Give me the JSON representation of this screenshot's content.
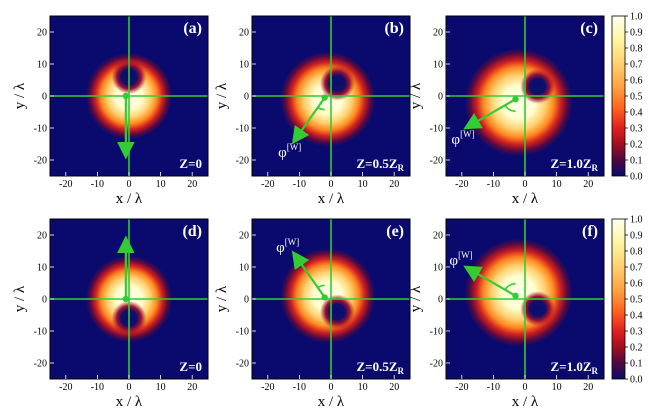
{
  "figure": {
    "panels": [
      {
        "id": "a",
        "label": "(a)",
        "z_label": "Z=0",
        "z_sub": "",
        "phi": "",
        "spot_dx": 0,
        "spot_dy": 0,
        "arrow": "down",
        "dark_hole": [
          0,
          6
        ],
        "scale": 1.0
      },
      {
        "id": "b",
        "label": "(b)",
        "z_label": "Z=0.5Z",
        "z_sub": "R",
        "phi": "φ",
        "spot_dx": -1,
        "spot_dy": -1,
        "arrow": "down-left-short",
        "dark_hole": [
          2,
          4
        ],
        "scale": 1.1
      },
      {
        "id": "c",
        "label": "(c)",
        "z_label": "Z=1.0Z",
        "z_sub": "R",
        "phi": "φ",
        "spot_dx": -2,
        "spot_dy": -2,
        "arrow": "down-left-long",
        "dark_hole": [
          4,
          3
        ],
        "scale": 1.25
      },
      {
        "id": "d",
        "label": "(d)",
        "z_label": "Z=0",
        "z_sub": "",
        "phi": "",
        "spot_dx": 0,
        "spot_dy": 0,
        "arrow": "up",
        "dark_hole": [
          0,
          -6
        ],
        "scale": 1.0
      },
      {
        "id": "e",
        "label": "(e)",
        "z_label": "Z=0.5Z",
        "z_sub": "R",
        "phi": "φ",
        "spot_dx": -1,
        "spot_dy": 1,
        "arrow": "up-left-short",
        "dark_hole": [
          2,
          -4
        ],
        "scale": 1.1
      },
      {
        "id": "f",
        "label": "(f)",
        "z_label": "Z=1.0Z",
        "z_sub": "R",
        "phi": "φ",
        "spot_dx": -2,
        "spot_dy": 2,
        "arrow": "up-left-long",
        "dark_hole": [
          4,
          -3
        ],
        "scale": 1.25
      }
    ],
    "phi_superscript": "[W]",
    "x_axis_label": "x / λ",
    "y_axis_label": "y / λ",
    "x_ticks": [
      "-20",
      "-10",
      "0",
      "10",
      "20"
    ],
    "y_ticks": [
      "20",
      "10",
      "0",
      "-10",
      "-20"
    ],
    "colorbar_ticks": [
      "1.0",
      "0.9",
      "0.8",
      "0.7",
      "0.6",
      "0.5",
      "0.4",
      "0.3",
      "0.2",
      "0.1",
      "0.0"
    ],
    "colors": {
      "background": "#0a0a6e",
      "guide_line": "#33cc33",
      "arrow": "#33cc33",
      "label_text": "#ffffff"
    }
  }
}
